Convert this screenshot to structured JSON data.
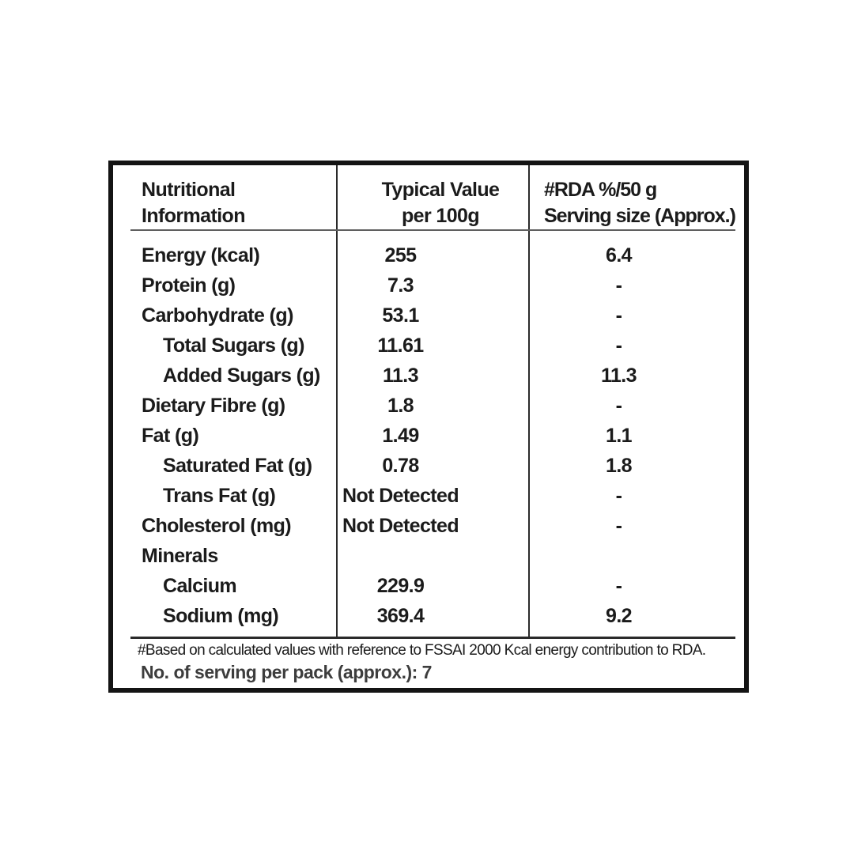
{
  "colors": {
    "border": "#141414",
    "text": "#1b1b1b",
    "separator_light": "#5f5f5f",
    "separator_dark": "#2a2a2a",
    "servings_text": "#3d3d3d",
    "background": "#ffffff"
  },
  "table": {
    "header": {
      "col1_line1": "Nutritional",
      "col1_line2": "Information",
      "col2_line1": "Typical Value",
      "col2_line2": "per 100g",
      "col3_line1": "#RDA %/50 g",
      "col3_line2": "Serving size (Approx.)"
    },
    "rows": [
      {
        "label": "Energy (kcal)",
        "indent": false,
        "value": "255",
        "rda": "6.4"
      },
      {
        "label": "Protein (g)",
        "indent": false,
        "value": "7.3",
        "rda": "-"
      },
      {
        "label": "Carbohydrate (g)",
        "indent": false,
        "value": "53.1",
        "rda": "-"
      },
      {
        "label": "Total Sugars (g)",
        "indent": true,
        "value": "11.61",
        "rda": "-"
      },
      {
        "label": "Added Sugars (g)",
        "indent": true,
        "value": "11.3",
        "rda": "11.3"
      },
      {
        "label": "Dietary Fibre (g)",
        "indent": false,
        "value": "1.8",
        "rda": "-"
      },
      {
        "label": "Fat (g)",
        "indent": false,
        "value": "1.49",
        "rda": "1.1"
      },
      {
        "label": "Saturated Fat (g)",
        "indent": true,
        "value": "0.78",
        "rda": "1.8"
      },
      {
        "label": "Trans Fat (g)",
        "indent": true,
        "value": "Not Detected",
        "rda": "-"
      },
      {
        "label": "Cholesterol (mg)",
        "indent": false,
        "value": "Not Detected",
        "rda": "-"
      },
      {
        "label": "Minerals",
        "indent": false,
        "value": "",
        "rda": ""
      },
      {
        "label": "Calcium",
        "indent": true,
        "value": "229.9",
        "rda": "-"
      },
      {
        "label": "Sodium (mg)",
        "indent": true,
        "value": "369.4",
        "rda": "9.2"
      }
    ],
    "footnote": "#Based on calculated values with reference to FSSAI 2000 Kcal energy contribution to RDA.",
    "servings": "No. of serving per pack (approx.): 7"
  }
}
